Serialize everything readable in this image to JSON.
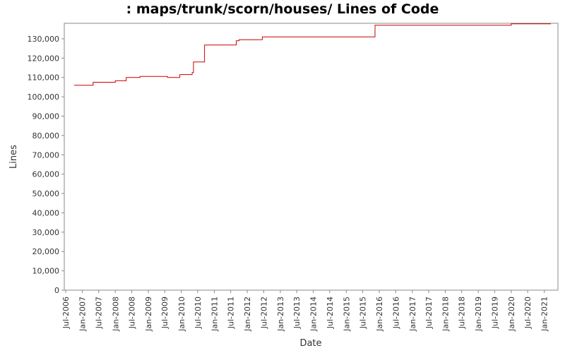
{
  "chart_data": {
    "type": "line",
    "title": ": maps/trunk/scorn/houses/ Lines of Code",
    "xlabel": "Date",
    "ylabel": "Lines",
    "ylim": [
      0,
      138000
    ],
    "xlim": [
      "2006-06-15",
      "2021-06-01"
    ],
    "grid": false,
    "y_ticks": [
      0,
      10000,
      20000,
      30000,
      40000,
      50000,
      60000,
      70000,
      80000,
      90000,
      100000,
      110000,
      120000,
      130000
    ],
    "y_tick_labels": [
      "0",
      "10,000",
      "20,000",
      "30,000",
      "40,000",
      "50,000",
      "60,000",
      "70,000",
      "80,000",
      "90,000",
      "100,000",
      "110,000",
      "120,000",
      "130,000"
    ],
    "x_ticks": [
      "2006-07-01",
      "2007-01-01",
      "2007-07-01",
      "2008-01-01",
      "2008-07-01",
      "2009-01-01",
      "2009-07-01",
      "2010-01-01",
      "2010-07-01",
      "2011-01-01",
      "2011-07-01",
      "2012-01-01",
      "2012-07-01",
      "2013-01-01",
      "2013-07-01",
      "2014-01-01",
      "2014-07-01",
      "2015-01-01",
      "2015-07-01",
      "2016-01-01",
      "2016-07-01",
      "2017-01-01",
      "2017-07-01",
      "2018-01-01",
      "2018-07-01",
      "2019-01-01",
      "2019-07-01",
      "2020-01-01",
      "2020-07-01",
      "2021-01-01"
    ],
    "x_tick_labels": [
      "Jul-2006",
      "Jan-2007",
      "Jul-2007",
      "Jan-2008",
      "Jul-2008",
      "Jan-2009",
      "Jul-2009",
      "Jan-2010",
      "Jul-2010",
      "Jan-2011",
      "Jul-2011",
      "Jan-2012",
      "Jul-2012",
      "Jan-2013",
      "Jul-2013",
      "Jan-2014",
      "Jul-2014",
      "Jan-2015",
      "Jul-2015",
      "Jan-2016",
      "Jul-2016",
      "Jan-2017",
      "Jul-2017",
      "Jan-2018",
      "Jul-2018",
      "Jan-2019",
      "Jul-2019",
      "Jan-2020",
      "Jul-2020",
      "Jan-2021"
    ],
    "series": [
      {
        "color": "#cc0000",
        "step": true,
        "points": [
          [
            "2006-10-01",
            106000
          ],
          [
            "2007-05-01",
            107500
          ],
          [
            "2008-01-01",
            108300
          ],
          [
            "2008-05-01",
            110000
          ],
          [
            "2008-10-01",
            110500
          ],
          [
            "2009-08-01",
            110000
          ],
          [
            "2009-12-15",
            111500
          ],
          [
            "2010-05-01",
            112500
          ],
          [
            "2010-05-15",
            118000
          ],
          [
            "2010-09-15",
            126800
          ],
          [
            "2011-09-01",
            129000
          ],
          [
            "2011-10-01",
            129500
          ],
          [
            "2012-06-15",
            131000
          ],
          [
            "2015-11-15",
            137000
          ],
          [
            "2020-01-01",
            137700
          ],
          [
            "2021-03-15",
            137700
          ]
        ]
      }
    ]
  }
}
